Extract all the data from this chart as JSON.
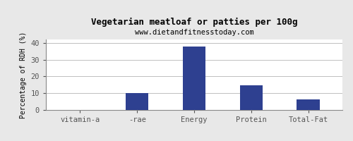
{
  "title": "Vegetarian meatloaf or patties per 100g",
  "subtitle": "www.dietandfitnesstoday.com",
  "categories": [
    "vitamin-a",
    "-rae",
    "Energy",
    "Protein",
    "Total-Fat"
  ],
  "values": [
    0,
    10,
    38,
    14.5,
    6.5
  ],
  "bar_color": "#2e4090",
  "ylabel": "Percentage of RDH (%)",
  "ylim": [
    0,
    42
  ],
  "yticks": [
    0,
    10,
    20,
    30,
    40
  ],
  "background_color": "#e8e8e8",
  "plot_bg_color": "#ffffff",
  "title_fontsize": 9,
  "subtitle_fontsize": 7.5,
  "ylabel_fontsize": 7,
  "tick_fontsize": 7.5,
  "bar_width": 0.4
}
